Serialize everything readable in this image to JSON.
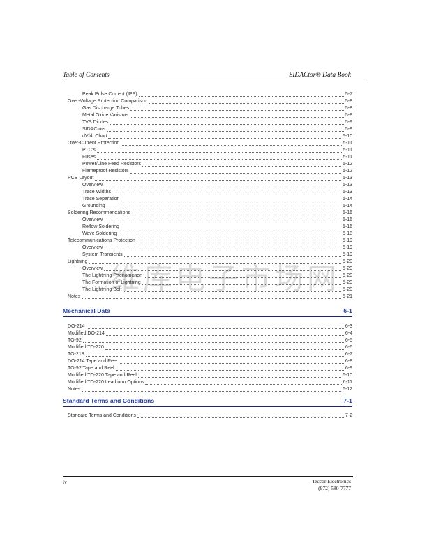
{
  "page_header": {
    "left": "Table of Contents",
    "right": "SIDACtor® Data Book"
  },
  "watermark": {
    "text": "维库电子市场网"
  },
  "colors": {
    "section_heading": "#2441a5",
    "section_rule": "#1d2670",
    "body_text": "#2e2e2e",
    "rule_black": "#1c1c1c"
  },
  "toc": {
    "sections": [
      {
        "title": null,
        "page": null,
        "items": [
          {
            "label": "Peak Pulse Current (IPP)",
            "page": "5-7",
            "indent": 2
          },
          {
            "label": "Over-Voltage Protection Comparison",
            "page": "5-8",
            "indent": 1
          },
          {
            "label": "Gas Discharge Tubes",
            "page": "5-8",
            "indent": 2
          },
          {
            "label": "Metal Oxide Varistors",
            "page": "5-8",
            "indent": 2
          },
          {
            "label": "TVS Diodes",
            "page": "5-9",
            "indent": 2
          },
          {
            "label": "SIDACtors",
            "page": "5-9",
            "indent": 2
          },
          {
            "label": "dV/dt Chart",
            "page": "5-10",
            "indent": 2
          },
          {
            "label": "Over-Current Protection",
            "page": "5-11",
            "indent": 1
          },
          {
            "label": "PTC's",
            "page": "5-11",
            "indent": 2
          },
          {
            "label": "Fuses",
            "page": "5-11",
            "indent": 2
          },
          {
            "label": "Power/Line Feed Resistors",
            "page": "5-12",
            "indent": 2
          },
          {
            "label": "Flameproof Resistors",
            "page": "5-12",
            "indent": 2
          },
          {
            "label": "PCB Layout",
            "page": "5-13",
            "indent": 1
          },
          {
            "label": "Overview",
            "page": "5-13",
            "indent": 2
          },
          {
            "label": "Trace Widths",
            "page": "5-13",
            "indent": 2
          },
          {
            "label": "Trace Separation",
            "page": "5-14",
            "indent": 2
          },
          {
            "label": "Grounding",
            "page": "5-14",
            "indent": 2
          },
          {
            "label": "Soldering Recommendations",
            "page": "5-16",
            "indent": 1
          },
          {
            "label": "Overview",
            "page": "5-16",
            "indent": 2
          },
          {
            "label": "Reflow Soldering",
            "page": "5-16",
            "indent": 2
          },
          {
            "label": "Wave Soldering",
            "page": "5-18",
            "indent": 2
          },
          {
            "label": "Telecommunications Protection",
            "page": "5-19",
            "indent": 1
          },
          {
            "label": "Overview",
            "page": "5-19",
            "indent": 2
          },
          {
            "label": "System Transients",
            "page": "5-19",
            "indent": 2
          },
          {
            "label": "Lightning",
            "page": "5-20",
            "indent": 1
          },
          {
            "label": "Overview",
            "page": "5-20",
            "indent": 2
          },
          {
            "label": "The Lightning Phenomenon",
            "page": "5-20",
            "indent": 2
          },
          {
            "label": "The Formation of Lightning",
            "page": "5-20",
            "indent": 2
          },
          {
            "label": "The Lightning Bolt",
            "page": "5-20",
            "indent": 2
          },
          {
            "label": "Notes",
            "page": "5-21",
            "indent": 1
          }
        ]
      },
      {
        "title": "Mechanical Data",
        "page": "6-1",
        "items": [
          {
            "label": "DO-214",
            "page": "6-3",
            "indent": 1
          },
          {
            "label": "Modified DO-214",
            "page": "6-4",
            "indent": 1
          },
          {
            "label": "TO-92",
            "page": "6-5",
            "indent": 1
          },
          {
            "label": "Modified TO-220",
            "page": "6-6",
            "indent": 1
          },
          {
            "label": "TO-218",
            "page": "6-7",
            "indent": 1
          },
          {
            "label": "DO-214 Tape and Reel",
            "page": "6-8",
            "indent": 1
          },
          {
            "label": "TO-92 Tape and Reel",
            "page": "6-9",
            "indent": 1
          },
          {
            "label": "Modified TO-220 Tape and Reel",
            "page": "6-10",
            "indent": 1
          },
          {
            "label": "Modified TO-220 Leadform Options",
            "page": "6-11",
            "indent": 1
          },
          {
            "label": "Notes",
            "page": "6-12",
            "indent": 1
          }
        ]
      },
      {
        "title": "Standard Terms and Conditions",
        "page": "7-1",
        "items": [
          {
            "label": "Standard Terms and Conditions",
            "page": "7-2",
            "indent": 1
          }
        ]
      }
    ]
  },
  "footer": {
    "page_number": "iv",
    "company": "Teccor Electronics",
    "phone": "(972) 580-7777"
  }
}
